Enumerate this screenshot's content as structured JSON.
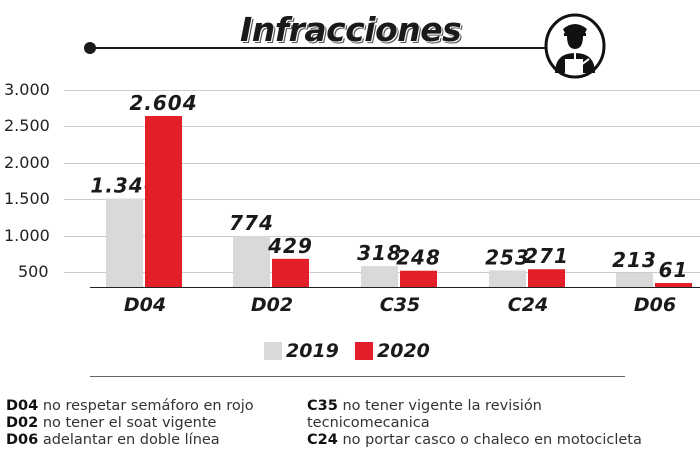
{
  "title": "Infracciones",
  "colors": {
    "2019": "#d9d9d9",
    "2020": "#e3202a"
  },
  "chart_data": {
    "type": "bar",
    "title": "Infracciones",
    "categories": [
      "D04",
      "D02",
      "C35",
      "C24",
      "D06"
    ],
    "series": [
      {
        "name": "2019",
        "values": [
          1346,
          774,
          318,
          253,
          213
        ],
        "labels": [
          "1.346",
          "774",
          "318",
          "253",
          "213"
        ]
      },
      {
        "name": "2020",
        "values": [
          2604,
          429,
          248,
          271,
          61
        ],
        "labels": [
          "2.604",
          "429",
          "248",
          "271",
          "61"
        ]
      }
    ],
    "yticks": [
      "3.000",
      "2.500",
      "2.000",
      "1.500",
      "1.000",
      "500"
    ],
    "ylim": [
      0,
      3000
    ],
    "legend": [
      "2019",
      "2020"
    ],
    "legend_position": "bottom"
  },
  "notes": [
    {
      "code": "D04",
      "text": "no respetar semáforo en rojo"
    },
    {
      "code": "D02",
      "text": "no tener el soat vigente"
    },
    {
      "code": "D06",
      "text": "adelantar en doble línea"
    },
    {
      "code": "C35",
      "text": "no tener vigente la revisión"
    },
    {
      "code": "",
      "text": "tecnicomecanica"
    },
    {
      "code": "C24",
      "text": "no portar casco o chaleco en motocicleta"
    }
  ]
}
